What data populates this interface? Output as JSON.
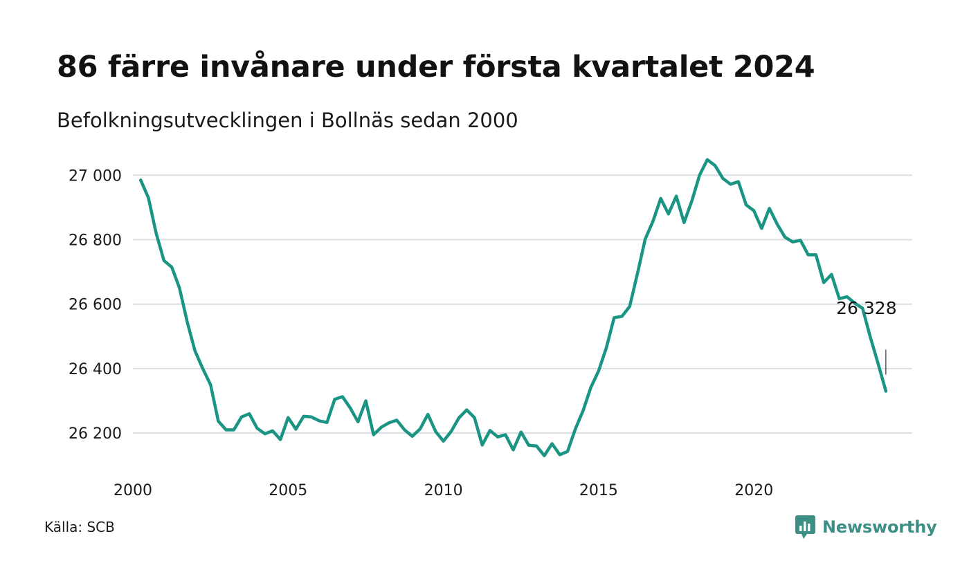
{
  "header": {
    "title": "86 färre invånare under första kvartalet 2024",
    "subtitle": "Befolkningsutvecklingen i Bollnäs sedan 2000"
  },
  "footer": {
    "source": "Källa: SCB",
    "brand": "Newsworthy",
    "brand_icon": "chart-logo-icon"
  },
  "colors": {
    "line": "#1a9483",
    "grid": "#dcdde2",
    "brand": "#3d8f86"
  },
  "chart_data": {
    "type": "line",
    "title": "86 färre invånare under första kvartalet 2024",
    "subtitle": "Befolkningsutvecklingen i Bollnäs sedan 2000",
    "x_unit": "year",
    "xlim": [
      2000,
      2025.1
    ],
    "ylim": [
      26093,
      27050
    ],
    "x_ticks": [
      2000,
      2005,
      2010,
      2015,
      2020
    ],
    "x_tick_labels": [
      "2000",
      "2005",
      "2010",
      "2015",
      "2020"
    ],
    "y_ticks": [
      26200,
      26400,
      26600,
      26800,
      27000
    ],
    "y_tick_labels": [
      "26 200",
      "26 400",
      "26 600",
      "26 800",
      "27 000"
    ],
    "grid": true,
    "legend": "none",
    "end_label": "26 328",
    "series": [
      {
        "x": [
          2000.25,
          2000.5,
          2000.75,
          2001.0,
          2001.25,
          2001.5,
          2001.75,
          2002.0,
          2002.25,
          2002.5,
          2002.75,
          2003.0,
          2003.25,
          2003.5,
          2003.75,
          2004.0,
          2004.25,
          2004.5,
          2004.75,
          2005.0,
          2005.25,
          2005.5,
          2005.75,
          2006.0,
          2006.25,
          2006.5,
          2006.75,
          2007.0,
          2007.25,
          2007.5,
          2007.75,
          2008.0,
          2008.25,
          2008.5,
          2008.75,
          2009.0,
          2009.25,
          2009.5,
          2009.75,
          2010.0,
          2010.25,
          2010.5,
          2010.75,
          2011.0,
          2011.25,
          2011.5,
          2011.75,
          2012.0,
          2012.25,
          2012.5,
          2012.75,
          2013.0,
          2013.25,
          2013.5,
          2013.75,
          2014.0,
          2014.25,
          2014.5,
          2014.75,
          2015.0,
          2015.25,
          2015.5,
          2015.75,
          2016.0,
          2016.25,
          2016.5,
          2016.75,
          2017.0,
          2017.25,
          2017.5,
          2017.75,
          2018.0,
          2018.25,
          2018.5,
          2018.75,
          2019.0,
          2019.25,
          2019.5,
          2019.75,
          2020.0,
          2020.25,
          2020.5,
          2020.75,
          2021.0,
          2021.25,
          2021.5,
          2021.75,
          2022.0,
          2022.25,
          2022.5,
          2022.75,
          2023.0,
          2023.25,
          2023.5,
          2023.75,
          2024.0,
          2024.25
        ],
        "y": [
          26985,
          26930,
          26820,
          26735,
          26715,
          26650,
          26545,
          26455,
          26400,
          26350,
          26237,
          26210,
          26210,
          26250,
          26260,
          26215,
          26198,
          26207,
          26180,
          26248,
          26212,
          26252,
          26250,
          26238,
          26233,
          26305,
          26313,
          26278,
          26235,
          26300,
          26195,
          26218,
          26232,
          26240,
          26210,
          26190,
          26213,
          26258,
          26205,
          26175,
          26205,
          26247,
          26272,
          26248,
          26163,
          26208,
          26188,
          26195,
          26148,
          26203,
          26162,
          26160,
          26130,
          26167,
          26133,
          26143,
          26213,
          26270,
          26342,
          26393,
          26465,
          26558,
          26562,
          26593,
          26695,
          26802,
          26857,
          26928,
          26880,
          26935,
          26853,
          26920,
          27000,
          27048,
          27030,
          26990,
          26972,
          26980,
          26908,
          26890,
          26835,
          26897,
          26848,
          26808,
          26793,
          26798,
          26753,
          26753,
          26667,
          26692,
          26617,
          26623,
          26603,
          26587,
          26498,
          26415,
          26330
        ]
      }
    ]
  }
}
